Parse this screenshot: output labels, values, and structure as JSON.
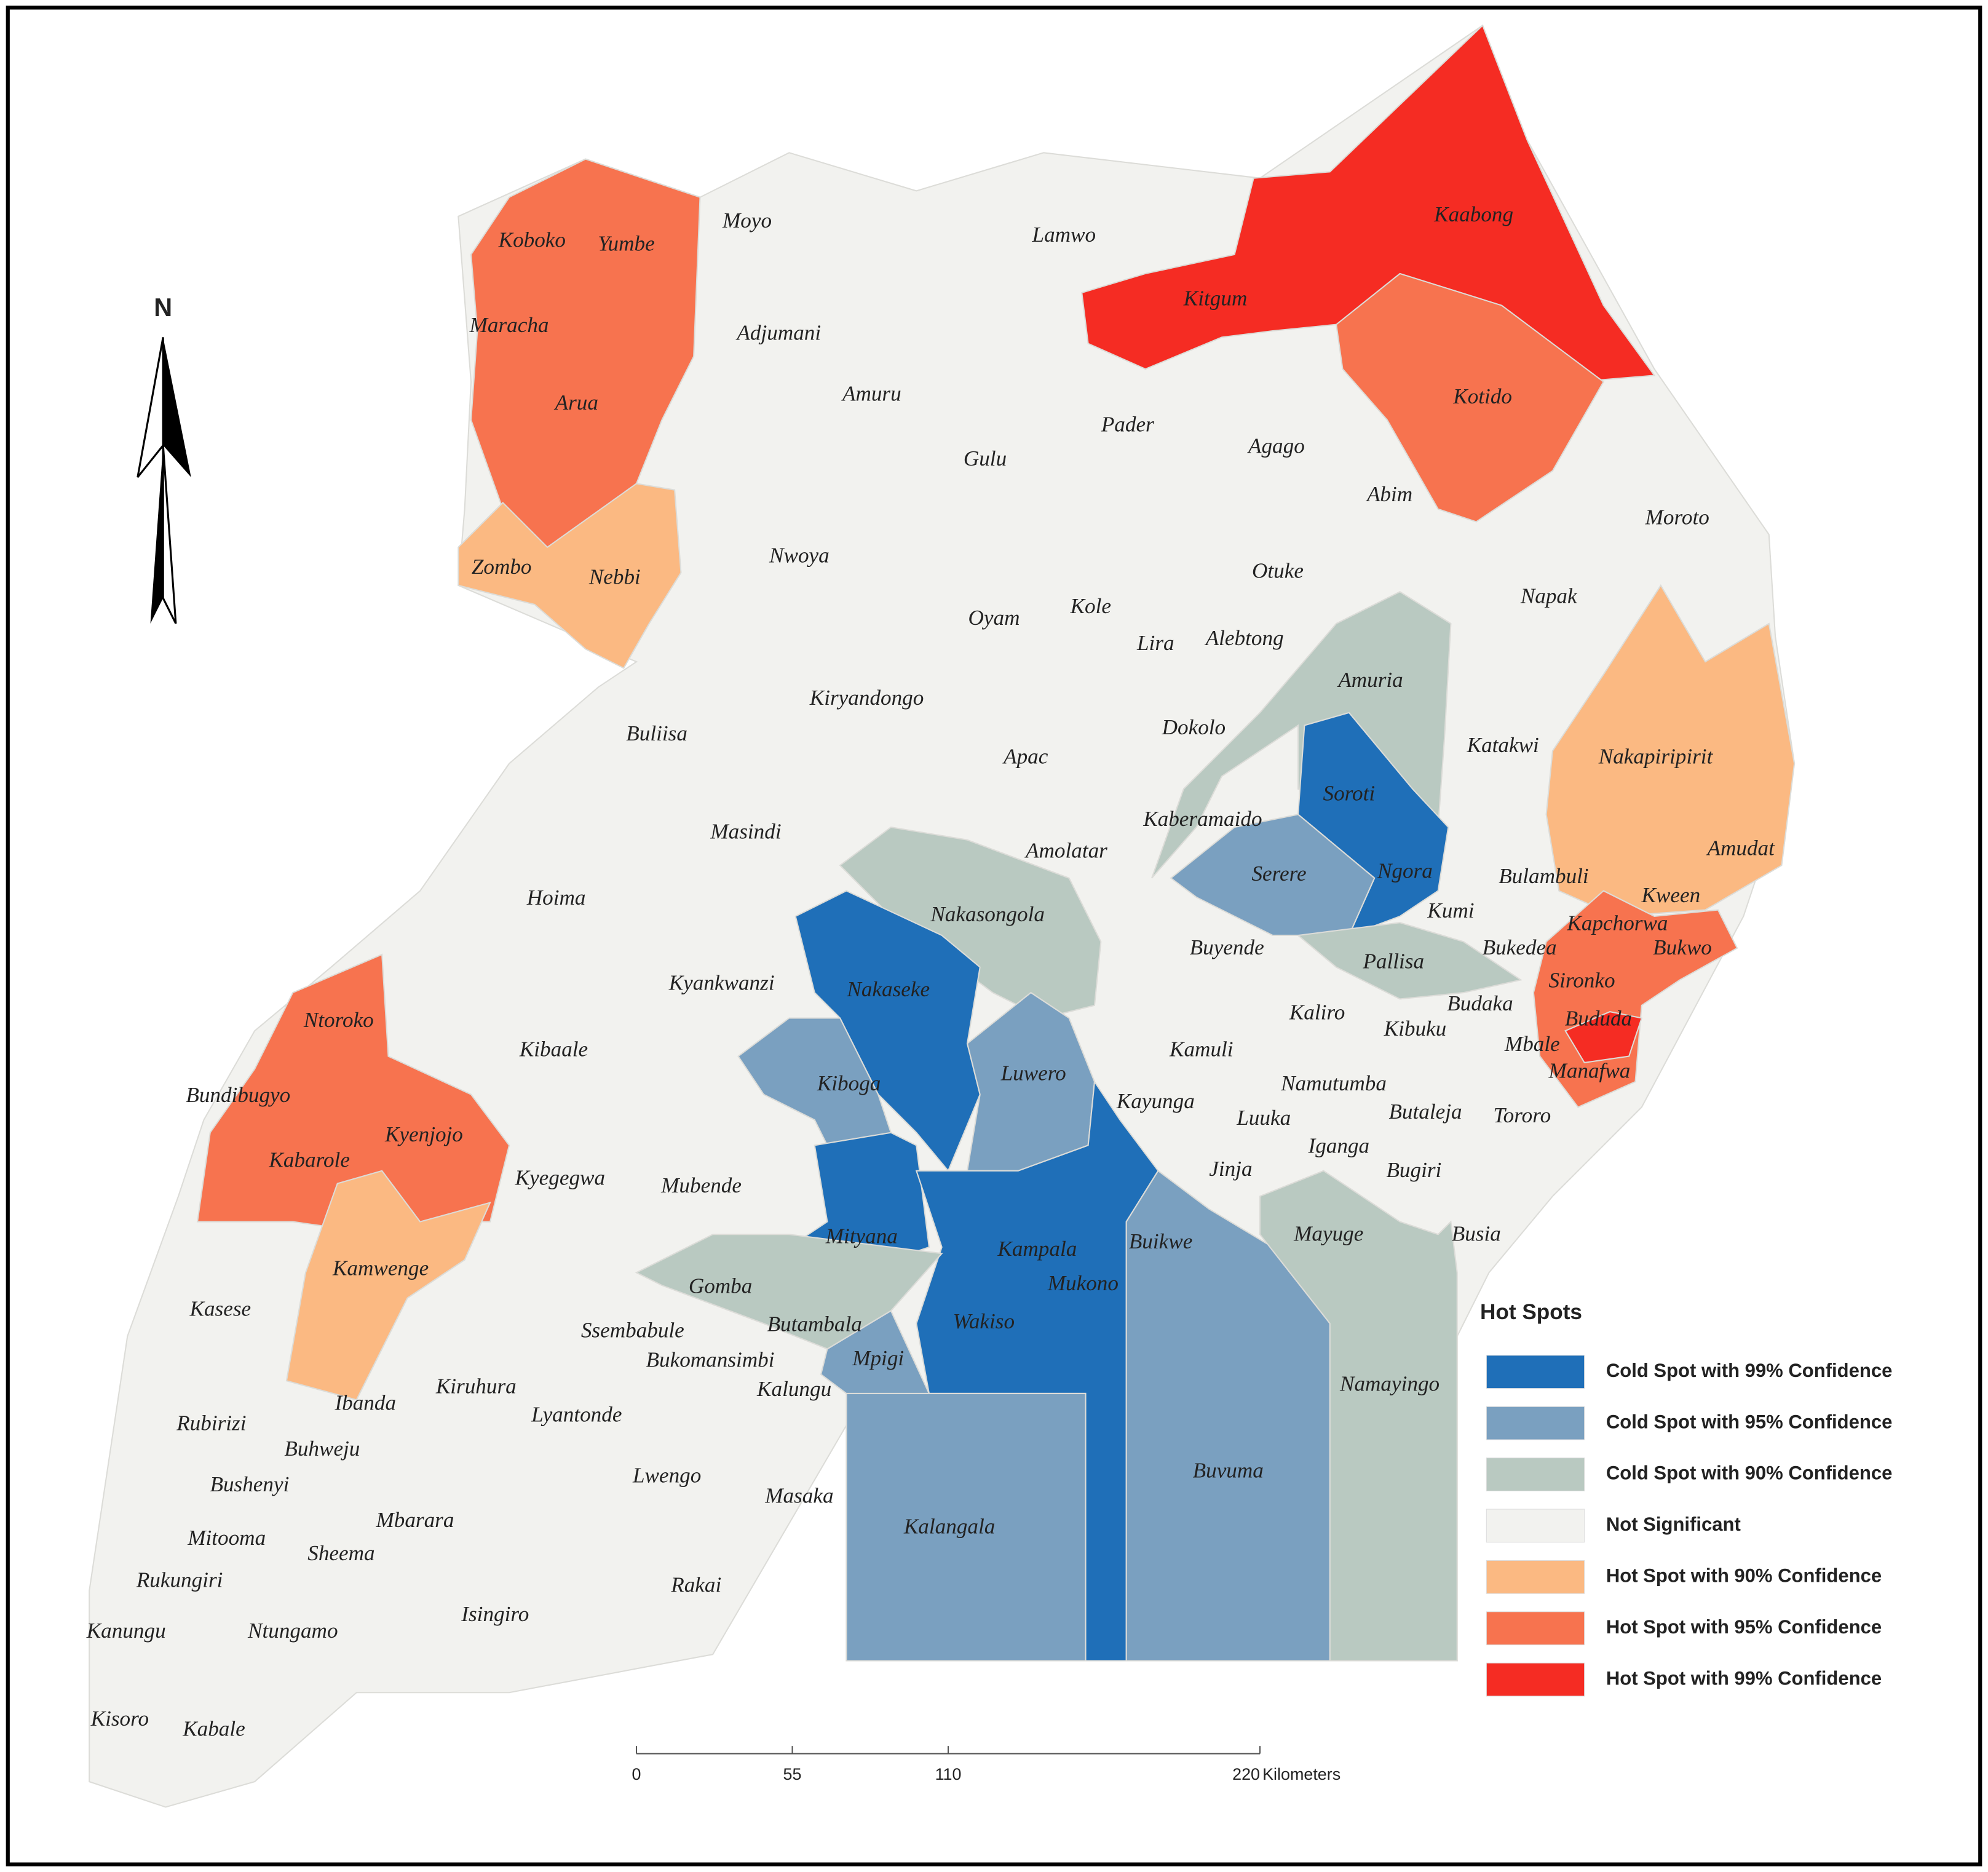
{
  "north_label": "N",
  "districts": [
    "Koboko",
    "Yumbe",
    "Moyo",
    "Lamwo",
    "Kaabong",
    "Maracha",
    "Adjumani",
    "Kitgum",
    "Arua",
    "Amuru",
    "Kotido",
    "Pader",
    "Agago",
    "Gulu",
    "Abim",
    "Moroto",
    "Zombo",
    "Nebbi",
    "Nwoya",
    "Otuke",
    "Napak",
    "Oyam",
    "Kole",
    "Lira",
    "Alebtong",
    "Amuria",
    "Kiryandongo",
    "Buliisa",
    "Dokolo",
    "Apac",
    "Katakwi",
    "Nakapiripirit",
    "Soroti",
    "Masindi",
    "Kaberamaido",
    "Amolatar",
    "Amudat",
    "Serere",
    "Ngora",
    "Bulambuli",
    "Hoima",
    "Nakasongola",
    "Kween",
    "Kumi",
    "Kapchorwa",
    "Buyende",
    "Bukedea",
    "Bukwo",
    "Pallisa",
    "Kyankwanzi",
    "Nakaseke",
    "Sironko",
    "Kaliro",
    "Budaka",
    "Bududa",
    "Ntoroko",
    "Kibuku",
    "Mbale",
    "Kibaale",
    "Kamuli",
    "Luwero",
    "Manafwa",
    "Kiboga",
    "Namutumba",
    "Bundibugyo",
    "Kayunga",
    "Butaleja",
    "Tororo",
    "Luuka",
    "Kyenjojo",
    "Iganga",
    "Kabarole",
    "Jinja",
    "Bugiri",
    "Kyegegwa",
    "Mubende",
    "Mayuge",
    "Busia",
    "Mityana",
    "Kampala",
    "Buikwe",
    "Kamwenge",
    "Mukono",
    "Gomba",
    "Kasese",
    "Butambala",
    "Wakiso",
    "Ssembabule",
    "Bukomansimbi",
    "Mpigi",
    "Kalungu",
    "Namayingo",
    "Kiruhura",
    "Ibanda",
    "Lyantonde",
    "Rubirizi",
    "Buhweju",
    "Lwengo",
    "Buvuma",
    "Bushenyi",
    "Masaka",
    "Mbarara",
    "Kalangala",
    "Mitooma",
    "Sheema",
    "Rukungiri",
    "Rakai",
    "Isingiro",
    "Kanungu",
    "Ntungamo",
    "Kisoro",
    "Kabale"
  ],
  "legend": {
    "title": "Hot Spots",
    "items": [
      {
        "label": "Cold Spot with 99% Confidence",
        "color": "#1f6fb8"
      },
      {
        "label": "Cold Spot with 95% Confidence",
        "color": "#7aa0c0"
      },
      {
        "label": "Cold Spot with 90% Confidence",
        "color": "#b9c9c1"
      },
      {
        "label": "Not Significant",
        "color": "#f2f2ef"
      },
      {
        "label": "Hot Spot with 90% Confidence",
        "color": "#fbb982"
      },
      {
        "label": "Hot Spot with 95% Confidence",
        "color": "#f7734f"
      },
      {
        "label": "Hot Spot with 99% Confidence",
        "color": "#f52c23"
      }
    ]
  },
  "scale_bar": {
    "ticks": [
      0,
      55,
      110,
      220
    ],
    "unit": "Kilometers"
  }
}
